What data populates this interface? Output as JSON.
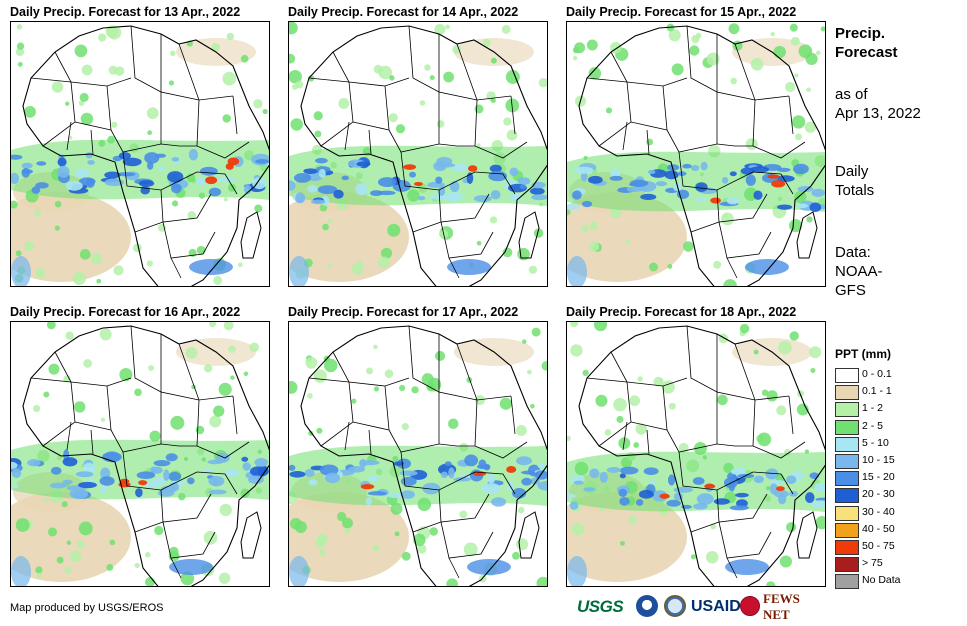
{
  "panels": [
    {
      "title": "Daily Precip. Forecast for 13 Apr., 2022"
    },
    {
      "title": "Daily Precip. Forecast for 14 Apr., 2022"
    },
    {
      "title": "Daily Precip. Forecast for 15 Apr., 2022"
    },
    {
      "title": "Daily Precip. Forecast for 16 Apr., 2022"
    },
    {
      "title": "Daily Precip. Forecast for 17 Apr., 2022"
    },
    {
      "title": "Daily Precip. Forecast for 18 Apr., 2022"
    }
  ],
  "side": {
    "title_line1": "Precip.",
    "title_line2": "Forecast",
    "asof_line1": "as of",
    "asof_line2": "Apr 13, 2022",
    "totals_line1": "Daily",
    "totals_line2": "Totals",
    "data_line1": "Data:",
    "data_line2": "NOAA-",
    "data_line3": "GFS"
  },
  "legend": {
    "title": "PPT (mm)",
    "items": [
      {
        "label": "0 - 0.1",
        "color": "#ffffff"
      },
      {
        "label": "0.1 - 1",
        "color": "#e8d6b4"
      },
      {
        "label": "1 - 2",
        "color": "#b4f0a8"
      },
      {
        "label": "2 - 5",
        "color": "#70e070"
      },
      {
        "label": "5 - 10",
        "color": "#a8e6f2"
      },
      {
        "label": "10 - 15",
        "color": "#78b8ec"
      },
      {
        "label": "15 - 20",
        "color": "#4a8ee6"
      },
      {
        "label": "20 - 30",
        "color": "#1e5fd6"
      },
      {
        "label": "30 - 40",
        "color": "#f8e07a"
      },
      {
        "label": "40 - 50",
        "color": "#f2a21a"
      },
      {
        "label": "50 - 75",
        "color": "#f03a0a"
      },
      {
        "label": "> 75",
        "color": "#a81d1d"
      },
      {
        "label": "No Data",
        "color": "#a0a0a0"
      }
    ]
  },
  "credit": "Map produced by USGS/EROS",
  "logos": {
    "usgs": "USGS",
    "usaid": "USAID",
    "fews": "FEWS NET"
  },
  "icons": [
    "noaa-logo-icon",
    "doi-seal-icon",
    "usaid-seal-icon"
  ]
}
